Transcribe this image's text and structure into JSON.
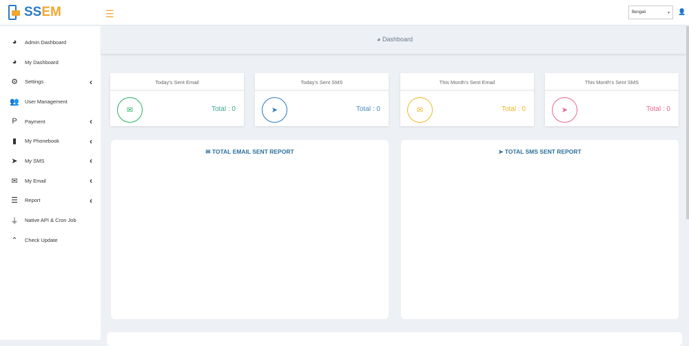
{
  "brand": {
    "part1": "SS",
    "part2": "EM"
  },
  "header": {
    "language": "Bengali"
  },
  "sidebar": {
    "items": [
      {
        "label": "Admin Dashboard",
        "icon": "tachometer-icon",
        "glyph": "◕",
        "sub": false
      },
      {
        "label": "My Dashboard",
        "icon": "tachometer-icon",
        "glyph": "◕",
        "sub": false
      },
      {
        "label": "Settings",
        "icon": "cogs-icon",
        "glyph": "⚙",
        "sub": true
      },
      {
        "label": "User Management",
        "icon": "users-icon",
        "glyph": "👥",
        "sub": false
      },
      {
        "label": "Payment",
        "icon": "paypal-icon",
        "glyph": "P",
        "sub": true
      },
      {
        "label": "My Phonebook",
        "icon": "book-icon",
        "glyph": "▮",
        "sub": true
      },
      {
        "label": "My SMS",
        "icon": "paper-plane-icon",
        "glyph": "➤",
        "sub": true
      },
      {
        "label": "My Email",
        "icon": "envelope-icon",
        "glyph": "✉",
        "sub": true
      },
      {
        "label": "Report",
        "icon": "list-icon",
        "glyph": "☰",
        "sub": true
      },
      {
        "label": "Native API & Cron Job",
        "icon": "plug-icon",
        "glyph": "⏚",
        "sub": false
      },
      {
        "label": "Check Update",
        "icon": "angle-double-up-icon",
        "glyph": "⌃",
        "sub": false
      }
    ]
  },
  "page": {
    "title": "Dashboard"
  },
  "cards": [
    {
      "title": "Today's Sent Email",
      "total": "Total : 0",
      "color": "#27ae60",
      "textColor": "#3aaa8a",
      "glyph": "✉",
      "icon": "envelope-icon"
    },
    {
      "title": "Today's Sent SMS",
      "total": "Total : 0",
      "color": "#2a79c4",
      "textColor": "#4a8ab8",
      "glyph": "➤",
      "icon": "paper-plane-icon"
    },
    {
      "title": "This Month's Sent Email",
      "total": "Total : 0",
      "color": "#f0b429",
      "textColor": "#f0b429",
      "glyph": "✉",
      "icon": "envelope-icon"
    },
    {
      "title": "This Month's Sent SMS",
      "total": "Total : 0",
      "color": "#e8668a",
      "textColor": "#e8668a",
      "glyph": "➤",
      "icon": "paper-plane-icon"
    }
  ],
  "panels": [
    {
      "title": "TOTAL EMAIL SENT REPORT",
      "glyph": "✉"
    },
    {
      "title": "TOTAL SMS SENT REPORT",
      "glyph": "➤"
    }
  ]
}
